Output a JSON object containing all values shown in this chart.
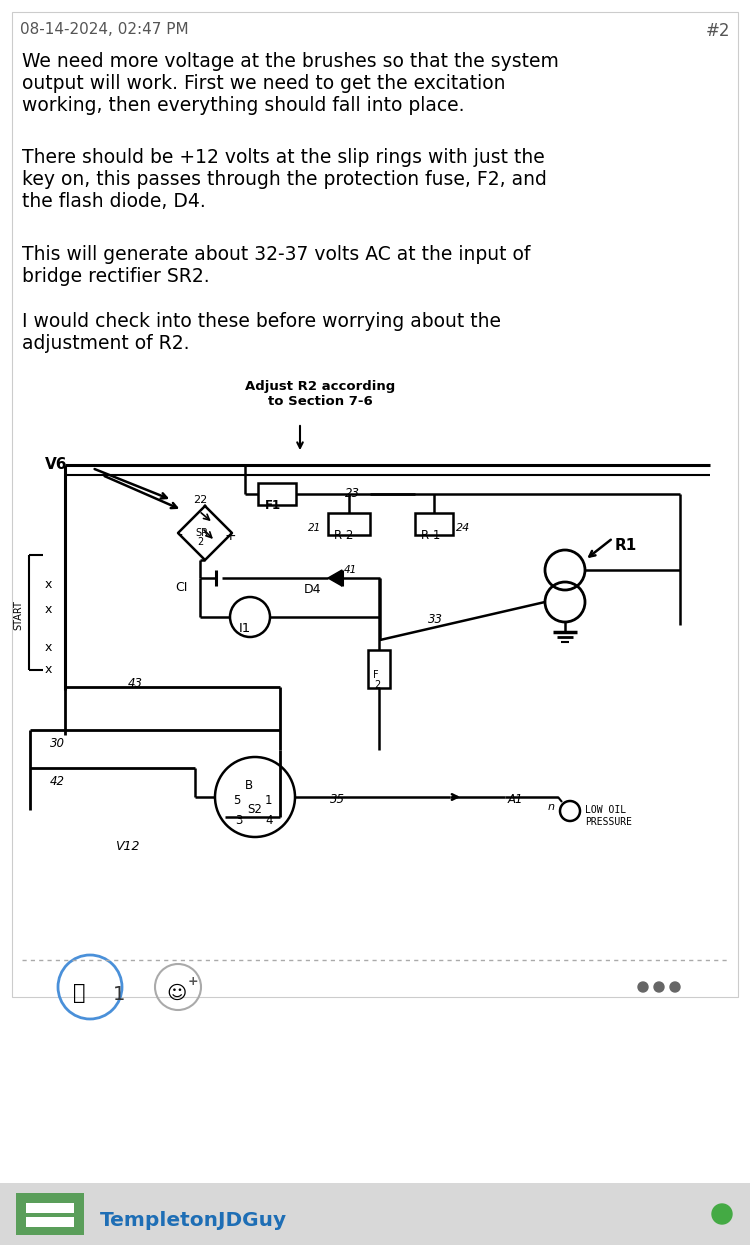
{
  "bg_color": "#ffffff",
  "date_text": "08-14-2024, 02:47 PM",
  "post_num": "#2",
  "paragraph1": "We need more voltage at the brushes so that the system\noutput will work. First we need to get the excitation\nworking, then everything should fall into place.",
  "paragraph2": "There should be +12 volts at the slip rings with just the\nkey on, this passes through the protection fuse, F2, and\nthe flash diode, D4.",
  "paragraph3": "This will generate about 32-37 volts AC at the input of\nbridge rectifier SR2.",
  "paragraph4": "I would check into these before worrying about the\nadjustment of R2.",
  "diagram_annotation": "Adjust R2 according\nto Section 7-6",
  "username": "TempletonJDGuy",
  "username_color": "#1e6eb5",
  "reaction_border": "#4a90d9",
  "green_dot_color": "#44aa44",
  "footer_bg": "#d8d8d8",
  "avatar_green": "#5a9e5a"
}
